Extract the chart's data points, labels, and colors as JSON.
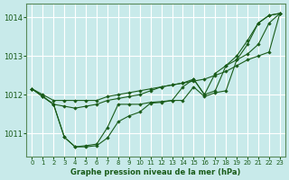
{
  "title": "Graphe pression niveau de la mer (hPa)",
  "background_color": "#c8eaea",
  "grid_color": "#b8d8d8",
  "line_color": "#1a5c1a",
  "marker_color": "#1a5c1a",
  "xlim": [
    -0.5,
    23.5
  ],
  "ylim": [
    1010.4,
    1014.35
  ],
  "yticks": [
    1011,
    1012,
    1013,
    1014
  ],
  "xticks": [
    0,
    1,
    2,
    3,
    4,
    5,
    6,
    7,
    8,
    9,
    10,
    11,
    12,
    13,
    14,
    15,
    16,
    17,
    18,
    19,
    20,
    21,
    22,
    23
  ],
  "series": [
    [
      1012.15,
      1012.0,
      1011.85,
      1011.85,
      1011.85,
      1011.85,
      1011.85,
      1011.95,
      1012.0,
      1012.05,
      1012.1,
      1012.15,
      1012.2,
      1012.25,
      1012.3,
      1012.35,
      1012.4,
      1012.5,
      1012.6,
      1012.75,
      1012.9,
      1013.0,
      1013.1,
      1014.1
    ],
    [
      1012.15,
      1011.95,
      1011.75,
      1011.7,
      1011.65,
      1011.7,
      1011.75,
      1011.85,
      1011.9,
      1011.95,
      1012.0,
      1012.1,
      1012.2,
      1012.25,
      1012.3,
      1012.4,
      1012.0,
      1012.1,
      1012.75,
      1012.9,
      1013.05,
      1013.3,
      1013.85,
      1014.1
    ],
    [
      1012.15,
      1011.95,
      1011.75,
      1010.9,
      1010.65,
      1010.68,
      1010.72,
      1011.15,
      1011.75,
      1011.75,
      1011.75,
      1011.8,
      1011.82,
      1011.85,
      1012.2,
      1012.4,
      1012.0,
      1012.55,
      1012.75,
      1013.0,
      1013.4,
      1013.85,
      1014.05,
      1014.1
    ],
    [
      1012.15,
      1011.95,
      1011.75,
      1010.9,
      1010.65,
      1010.65,
      1010.68,
      1010.88,
      1011.3,
      1011.45,
      1011.55,
      1011.78,
      1011.8,
      1011.85,
      1011.85,
      1012.2,
      1011.95,
      1012.05,
      1012.1,
      1012.9,
      1013.3,
      1013.85,
      1014.05,
      1014.1
    ]
  ]
}
